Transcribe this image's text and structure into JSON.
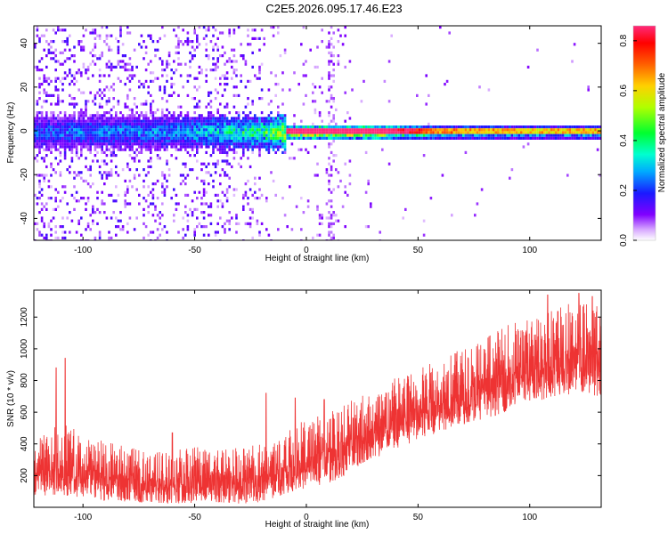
{
  "figure_title": "C2E5.2026.095.17.46.E23",
  "chart_data": [
    {
      "type": "heatmap",
      "name": "spectrogram",
      "title": "",
      "xlabel": "Height of straight line (km)",
      "ylabel": "Frequency (Hz)",
      "xlim": [
        -122,
        132
      ],
      "ylim": [
        -50,
        48
      ],
      "xticks": [
        -100,
        -50,
        0,
        50,
        100
      ],
      "yticks": [
        -40,
        -20,
        0,
        20,
        40
      ],
      "colorbar": {
        "label": "Normalized spectral amplitude",
        "range": [
          0,
          0.86
        ],
        "ticks": [
          0.0,
          0.2,
          0.4,
          0.6,
          0.8
        ],
        "colormap": "hsv-rainbow"
      },
      "description_values": {
        "dominant_frequency_hz": 0,
        "band_amplitude_by_height": [
          [
            -120,
            0.25
          ],
          [
            -60,
            0.3
          ],
          [
            -20,
            0.45
          ],
          [
            0,
            0.8
          ],
          [
            30,
            0.75
          ],
          [
            60,
            0.45
          ],
          [
            100,
            0.4
          ],
          [
            130,
            0.4
          ]
        ]
      }
    },
    {
      "type": "line",
      "name": "snr",
      "title": "",
      "xlabel": "Height of straight line (km)",
      "ylabel": "SNR (10 * v/v)",
      "xlim": [
        -122,
        132
      ],
      "ylim": [
        0,
        1370
      ],
      "xticks": [
        -100,
        -50,
        0,
        50,
        100
      ],
      "yticks": [
        200,
        400,
        600,
        800,
        1000,
        1200
      ],
      "series": [
        {
          "name": "SNR",
          "color": "#ee3333",
          "envelope_x": [
            -122,
            -110,
            -100,
            -90,
            -80,
            -70,
            -60,
            -50,
            -40,
            -30,
            -20,
            -10,
            0,
            10,
            20,
            30,
            40,
            50,
            60,
            70,
            80,
            90,
            100,
            110,
            120,
            132
          ],
          "envelope_lower": [
            60,
            70,
            60,
            40,
            30,
            30,
            20,
            20,
            30,
            20,
            30,
            80,
            120,
            150,
            220,
            300,
            370,
            420,
            480,
            520,
            560,
            600,
            650,
            690,
            720,
            700
          ],
          "envelope_upper": [
            400,
            560,
            450,
            420,
            380,
            350,
            360,
            380,
            390,
            380,
            400,
            480,
            560,
            600,
            680,
            740,
            820,
            870,
            950,
            1000,
            1100,
            1150,
            1200,
            1250,
            1300,
            1280
          ],
          "peaks": [
            [
              -108,
              940
            ],
            [
              -112,
              880
            ],
            [
              -60,
              470
            ],
            [
              -18,
              720
            ],
            [
              -5,
              690
            ],
            [
              8,
              680
            ],
            [
              108,
              1340
            ],
            [
              122,
              1350
            ],
            [
              128,
              1330
            ]
          ]
        }
      ]
    }
  ]
}
